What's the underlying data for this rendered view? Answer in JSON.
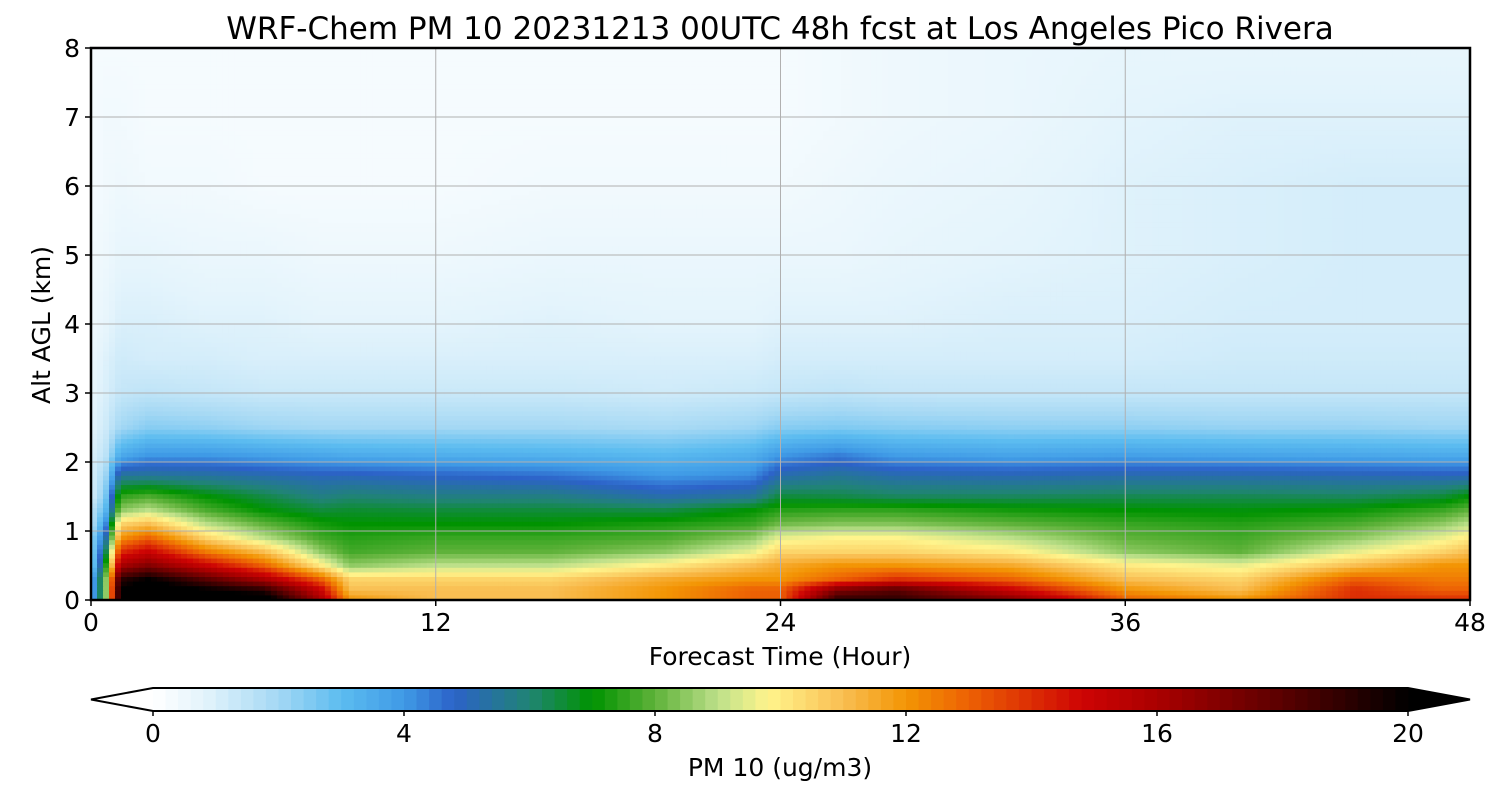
{
  "chart_data": {
    "type": "heatmap",
    "title": "WRF-Chem PM 10  20231213 00UTC 48h fcst at Los Angeles Pico Rivera",
    "xlabel": "Forecast Time (Hour)",
    "ylabel": "Alt AGL (km)",
    "xlim": [
      0,
      48
    ],
    "ylim": [
      0,
      8
    ],
    "x_ticks": [
      "0",
      "12",
      "24",
      "36",
      "48"
    ],
    "y_ticks": [
      "0",
      "1",
      "2",
      "3",
      "4",
      "5",
      "6",
      "7",
      "8"
    ],
    "grid": true,
    "colorbar": {
      "label": "PM 10  (ug/m3)",
      "range": [
        0,
        20
      ],
      "ticks": [
        "0",
        "4",
        "8",
        "12",
        "16",
        "20"
      ],
      "extend": "both",
      "stops": [
        [
          0,
          "#ffffff"
        ],
        [
          0.8,
          "#e4f4fc"
        ],
        [
          2,
          "#a4d8f4"
        ],
        [
          3,
          "#5cbcf0"
        ],
        [
          4,
          "#3f9ae6"
        ],
        [
          4.8,
          "#2c62c8"
        ],
        [
          6,
          "#208474"
        ],
        [
          7,
          "#009300"
        ],
        [
          8,
          "#5fb23a"
        ],
        [
          9,
          "#bde08a"
        ],
        [
          9.8,
          "#fff48c"
        ],
        [
          11,
          "#f9be52"
        ],
        [
          12,
          "#f39504"
        ],
        [
          13,
          "#ed6104"
        ],
        [
          14.8,
          "#ce0404"
        ],
        [
          16,
          "#aa0000"
        ],
        [
          18,
          "#5a0000"
        ],
        [
          20,
          "#000000"
        ]
      ]
    },
    "hours": [
      0,
      0.5,
      1,
      2,
      4,
      6,
      8,
      9,
      12,
      16,
      20,
      23,
      24,
      26,
      28,
      32,
      36,
      40,
      44,
      47,
      48
    ],
    "altitudes_km": [
      0,
      0.15,
      0.3,
      0.5,
      0.7,
      0.9,
      1.1,
      1.3,
      1.5,
      1.8,
      2.1,
      2.5,
      3,
      3.5,
      4,
      5,
      6,
      7,
      8
    ],
    "values_ugm3": [
      [
        3,
        8,
        20,
        21,
        21,
        21,
        16,
        12,
        11,
        11,
        12,
        13,
        13,
        19,
        19,
        17,
        13,
        12,
        14,
        14,
        14
      ],
      [
        3,
        8,
        20,
        21,
        20,
        19,
        15,
        11,
        11,
        11,
        12,
        13,
        13,
        17,
        18,
        15,
        12,
        11,
        14,
        13,
        13
      ],
      [
        3,
        8,
        19,
        20,
        18,
        16,
        13,
        10.5,
        10.5,
        10.5,
        11.5,
        12,
        12,
        13,
        14,
        13,
        11,
        10.5,
        13,
        12.5,
        12.5
      ],
      [
        2,
        7,
        16,
        17,
        15,
        13,
        10,
        8.5,
        9,
        9,
        10,
        11,
        11.5,
        12,
        12,
        11.5,
        10,
        9.5,
        11,
        12,
        12
      ],
      [
        2,
        6,
        14,
        15,
        12.5,
        11,
        8.5,
        7.7,
        8,
        8,
        8.5,
        9.5,
        10.5,
        10.5,
        10.5,
        10,
        8.5,
        8,
        9.5,
        10.5,
        11
      ],
      [
        2,
        5,
        12,
        13,
        10.5,
        9,
        7.7,
        7.4,
        7.6,
        7.6,
        7.8,
        8.5,
        9.5,
        9.8,
        9.8,
        9,
        8,
        7.7,
        8.5,
        9.5,
        10
      ],
      [
        1.5,
        4,
        10.5,
        11,
        9,
        8,
        7.2,
        7,
        7,
        7,
        7.3,
        7.6,
        8.2,
        8.4,
        8.4,
        8,
        7.6,
        7.4,
        7.8,
        8.5,
        9
      ],
      [
        1.5,
        3,
        8.5,
        9,
        7.8,
        7,
        6.5,
        6.6,
        6.5,
        6.5,
        6.4,
        7,
        7.4,
        7.5,
        7.5,
        7.2,
        7,
        6.9,
        7.1,
        7.6,
        8
      ],
      [
        1,
        2.5,
        7.5,
        7.8,
        7,
        6.4,
        5.8,
        6,
        5.8,
        5.8,
        5.2,
        5.5,
        6.5,
        6.4,
        6.2,
        6.2,
        6.3,
        6.3,
        6.2,
        6.5,
        7
      ],
      [
        1,
        2,
        5.5,
        5.5,
        5.4,
        5.2,
        5,
        5,
        4.8,
        4.6,
        4,
        4.2,
        5.2,
        5.5,
        5.2,
        5.1,
        5.2,
        5.2,
        5.1,
        5,
        5
      ],
      [
        1,
        1.5,
        3.5,
        4,
        4,
        3.8,
        3.6,
        3.5,
        3.4,
        3.3,
        3.1,
        3.4,
        4,
        4.4,
        3.9,
        3.7,
        3.8,
        3.7,
        3.6,
        3.5,
        3.5
      ],
      [
        0.8,
        1.2,
        2,
        2.4,
        2.3,
        2.1,
        2,
        2,
        2,
        2,
        1.9,
        2.1,
        2.4,
        2.5,
        2.4,
        2.3,
        2.3,
        2.2,
        2.2,
        2.1,
        2.1
      ],
      [
        0.7,
        1,
        1.4,
        1.5,
        1.4,
        1.3,
        1.3,
        1.3,
        1.3,
        1.3,
        1.2,
        1.3,
        1.4,
        1.5,
        1.4,
        1.4,
        1.4,
        1.4,
        1.4,
        1.4,
        1.4
      ],
      [
        0.6,
        0.9,
        1.2,
        1.1,
        1.1,
        1,
        1,
        1,
        1,
        1,
        1,
        1,
        1.1,
        1.1,
        1.1,
        1.1,
        1.1,
        1.2,
        1.2,
        1.2,
        1.2
      ],
      [
        0.5,
        0.7,
        1,
        1,
        0.9,
        0.9,
        0.8,
        0.8,
        0.8,
        0.9,
        0.8,
        0.8,
        0.9,
        0.9,
        0.9,
        1,
        1,
        1.1,
        1.1,
        1.1,
        1.1
      ],
      [
        0.4,
        0.5,
        0.7,
        0.7,
        0.6,
        0.6,
        0.5,
        0.5,
        0.5,
        0.6,
        0.6,
        0.6,
        0.6,
        0.6,
        0.7,
        0.8,
        0.9,
        1,
        1.1,
        1.1,
        1.1
      ],
      [
        0.3,
        0.4,
        0.5,
        0.4,
        0.4,
        0.3,
        0.3,
        0.3,
        0.3,
        0.4,
        0.4,
        0.4,
        0.4,
        0.5,
        0.6,
        0.7,
        0.9,
        1,
        1.1,
        1.1,
        1.1
      ],
      [
        0.3,
        0.4,
        0.4,
        0.3,
        0.3,
        0.3,
        0.3,
        0.3,
        0.3,
        0.3,
        0.3,
        0.3,
        0.3,
        0.4,
        0.5,
        0.6,
        0.8,
        0.9,
        0.9,
        0.9,
        0.9
      ],
      [
        0.3,
        0.3,
        0.3,
        0.3,
        0.3,
        0.3,
        0.3,
        0.3,
        0.3,
        0.3,
        0.3,
        0.3,
        0.3,
        0.4,
        0.5,
        0.6,
        0.7,
        0.7,
        0.7,
        0.7,
        0.7
      ]
    ]
  }
}
